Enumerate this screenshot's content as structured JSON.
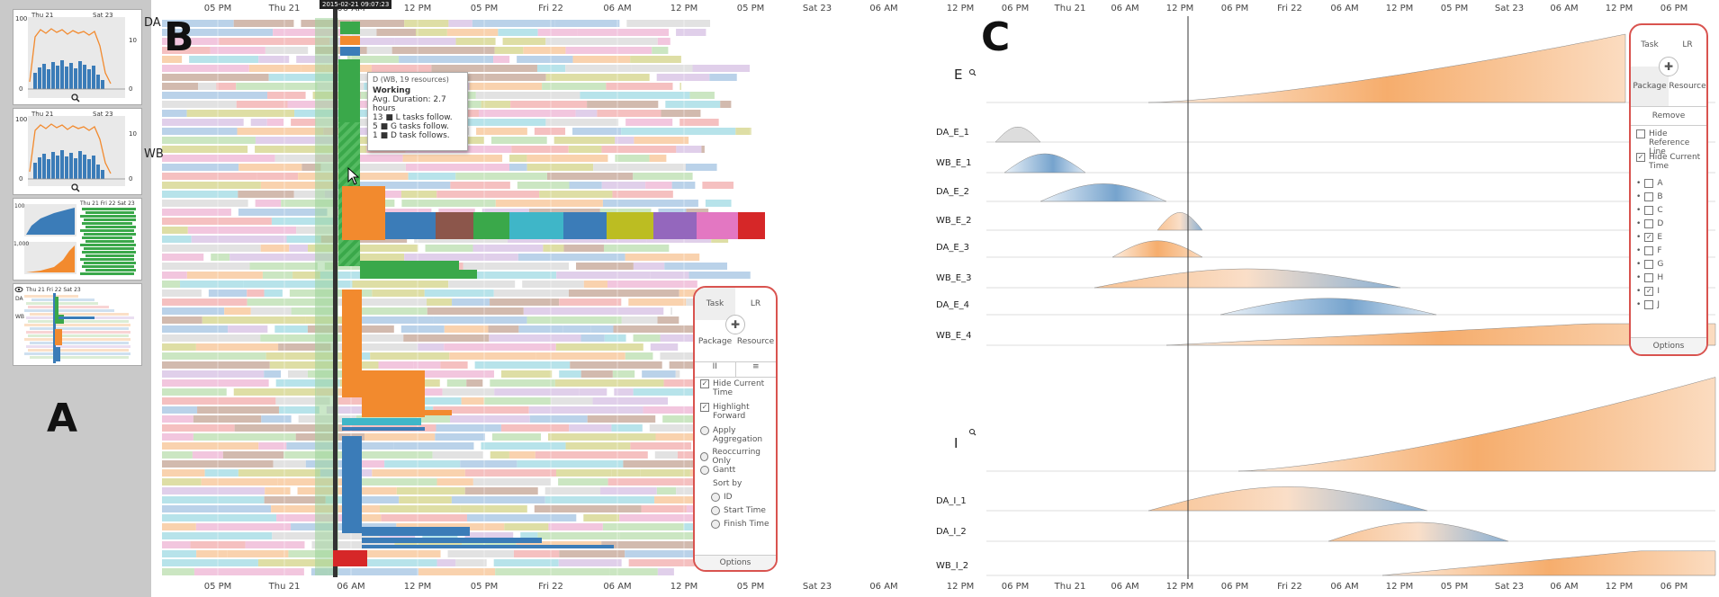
{
  "panel_a": {
    "letter": "A",
    "thumb1": {
      "left_label": "Thu 21",
      "right_label": "Sat 23",
      "y_top": "100",
      "y_bottom": "0",
      "y2_top": "10",
      "y2_bottom": "0"
    },
    "thumb2": {
      "left_label": "Thu 21",
      "right_label": "Sat 23",
      "y_top": "100",
      "y_bottom": "0",
      "y2_top": "10",
      "y2_bottom": "0"
    },
    "thumb3": {
      "top_label": "Thu 21  Fri 22  Sat 23",
      "y1": "100",
      "y2": "1,000"
    },
    "thumb4": {
      "labels": "Thu 21      Fri 22      Sat 23",
      "row1": "DA",
      "row2": "WB"
    }
  },
  "panel_b": {
    "letter": "B",
    "axis_ticks": [
      "05 PM",
      "Thu 21",
      "06 AM",
      "12 PM",
      "05 PM",
      "Fri 22",
      "06 AM",
      "12 PM",
      "05 PM",
      "Sat 23",
      "06 AM"
    ],
    "current_time_label": "2015-02-21 09:07:23",
    "row_labels": {
      "da": "DA",
      "wb": "WB"
    },
    "tooltip": {
      "title": "D (WB, 19 resources)",
      "state": "Working",
      "duration": "Avg. Duration: 2.7 hours",
      "line1": "13 ■ L tasks follow.",
      "line2": "5 ■ G tasks follow.",
      "line3": "1 ■ D task follows."
    },
    "controls": {
      "task": "Task",
      "lr": "LR",
      "package": "Package",
      "resource": "Resource",
      "btn_a": "II",
      "btn_b": "≡",
      "hide_current_time": "Hide Current Time",
      "highlight_forward": "Highlight Forward",
      "apply_aggregation": "Apply Aggregation",
      "reoccurring_only": "Reoccurring Only",
      "gantt": "Gantt",
      "sort_by": "Sort by",
      "sort_id": "ID",
      "sort_start": "Start Time",
      "sort_finish": "Finish Time",
      "options": "Options"
    }
  },
  "panel_c": {
    "letter": "C",
    "axis_ticks": [
      "12 PM",
      "06 PM",
      "Thu 21",
      "06 AM",
      "12 PM",
      "06 PM",
      "Fri 22",
      "06 AM",
      "12 PM",
      "05 PM",
      "Sat 23",
      "06 AM",
      "12 PM",
      "06 PM"
    ],
    "rows": {
      "e": "E",
      "da_e_1": "DA_E_1",
      "wb_e_1": "WB_E_1",
      "da_e_2": "DA_E_2",
      "wb_e_2": "WB_E_2",
      "da_e_3": "DA_E_3",
      "wb_e_3": "WB_E_3",
      "da_e_4": "DA_E_4",
      "wb_e_4": "WB_E_4",
      "i": "I",
      "da_i_1": "DA_I_1",
      "da_i_2": "DA_I_2",
      "wb_i_2": "WB_I_2"
    },
    "controls": {
      "task": "Task",
      "lr": "LR",
      "package": "Package",
      "resource": "Resource",
      "remove": "Remove",
      "hide_reference_line": "Hide Reference Line",
      "hide_current_time": "Hide Current Time",
      "filters": [
        "A",
        "B",
        "C",
        "D",
        "E",
        "F",
        "G",
        "H",
        "I",
        "J"
      ],
      "checked": [
        "E",
        "I"
      ],
      "options": "Options"
    }
  },
  "colors": {
    "orange": "#f28a2e",
    "blue": "#3b7cb8",
    "green": "#3aa84a",
    "red": "#d62728",
    "panel_border": "#d9534f"
  }
}
